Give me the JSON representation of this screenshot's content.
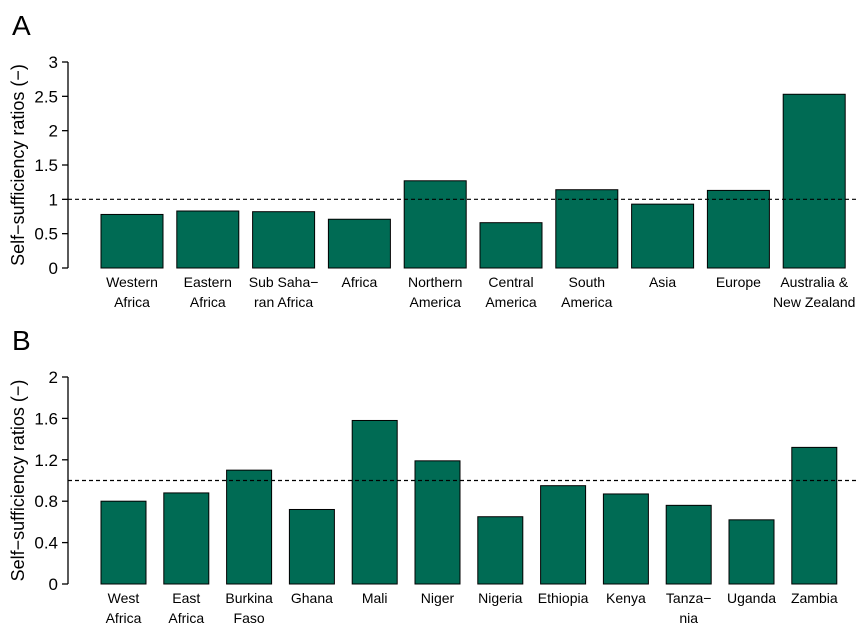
{
  "chart_data": [
    {
      "type": "bar",
      "panel_label": "A",
      "ylabel": "Self−sufficiency ratios (−)",
      "xlabel": "",
      "ylim": [
        0,
        3
      ],
      "yticks": [
        "0",
        "0.5",
        "1",
        "1.5",
        "2",
        "2.5",
        "3"
      ],
      "ytick_values": [
        0,
        0.5,
        1,
        1.5,
        2,
        2.5,
        3
      ],
      "reference_line": 1,
      "reference_style": "dashed",
      "bar_color": "#006b54",
      "categories": [
        [
          "Western",
          "Africa"
        ],
        [
          "Eastern",
          "Africa"
        ],
        [
          "Sub Saha−",
          "ran Africa"
        ],
        [
          "Africa"
        ],
        [
          "Northern",
          "America"
        ],
        [
          "Central",
          "America"
        ],
        [
          "South",
          "America"
        ],
        [
          "Asia"
        ],
        [
          "Europe"
        ],
        [
          "Australia &",
          "New Zealand"
        ]
      ],
      "values": [
        0.78,
        0.83,
        0.82,
        0.71,
        1.27,
        0.66,
        1.14,
        0.93,
        1.13,
        2.53
      ]
    },
    {
      "type": "bar",
      "panel_label": "B",
      "ylabel": "Self−sufficiency ratios (−)",
      "xlabel": "",
      "ylim": [
        0,
        2
      ],
      "yticks": [
        "0",
        "0.4",
        "0.8",
        "1.2",
        "1.6",
        "2"
      ],
      "ytick_values": [
        0,
        0.4,
        0.8,
        1.2,
        1.6,
        2
      ],
      "reference_line": 1,
      "reference_style": "dashed",
      "bar_color": "#006b54",
      "categories": [
        [
          "West",
          "Africa"
        ],
        [
          "East",
          "Africa"
        ],
        [
          "Burkina",
          "Faso"
        ],
        [
          "Ghana"
        ],
        [
          "Mali"
        ],
        [
          "Niger"
        ],
        [
          "Nigeria"
        ],
        [
          "Ethiopia"
        ],
        [
          "Kenya"
        ],
        [
          "Tanza−",
          "nia"
        ],
        [
          "Uganda"
        ],
        [
          "Zambia"
        ]
      ],
      "values": [
        0.8,
        0.88,
        1.1,
        0.72,
        1.58,
        1.19,
        0.65,
        0.95,
        0.87,
        0.76,
        0.62,
        1.32
      ]
    }
  ]
}
